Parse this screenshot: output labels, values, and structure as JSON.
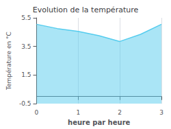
{
  "chart_data": {
    "type": "area",
    "title": "Evolution de la température",
    "xlabel": "heure par heure",
    "ylabel": "Température en °C",
    "x": [
      0,
      0.5,
      1,
      1.5,
      2,
      2.5,
      3
    ],
    "values": [
      5.05,
      4.75,
      4.55,
      4.25,
      3.85,
      4.35,
      5.05
    ],
    "color": "#55ccee",
    "xlim": [
      0,
      3
    ],
    "xticks": [
      0,
      1,
      2,
      3
    ],
    "ylim": [
      -0.5,
      5.5
    ],
    "yticks": [
      -0.5,
      1.5,
      3.5,
      5.5
    ],
    "grid": "x"
  }
}
